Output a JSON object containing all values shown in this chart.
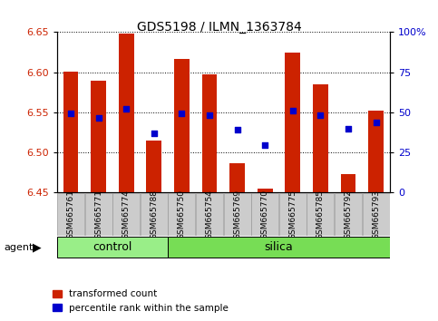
{
  "title": "GDS5198 / ILMN_1363784",
  "samples": [
    "GSM665761",
    "GSM665771",
    "GSM665774",
    "GSM665788",
    "GSM665750",
    "GSM665754",
    "GSM665769",
    "GSM665770",
    "GSM665775",
    "GSM665785",
    "GSM665792",
    "GSM665793"
  ],
  "bar_values": [
    6.601,
    6.59,
    6.648,
    6.515,
    6.617,
    6.597,
    6.487,
    6.455,
    6.625,
    6.585,
    6.473,
    6.552
  ],
  "bar_bottom": 6.45,
  "percentile_values": [
    6.549,
    6.543,
    6.554,
    6.524,
    6.549,
    6.546,
    6.528,
    6.509,
    6.552,
    6.547,
    6.53,
    6.537
  ],
  "ylim": [
    6.45,
    6.65
  ],
  "yticks_left": [
    6.45,
    6.5,
    6.55,
    6.6,
    6.65
  ],
  "yticks_right": [
    0,
    25,
    50,
    75,
    100
  ],
  "control_count": 4,
  "silica_count": 8,
  "bar_color": "#cc2200",
  "dot_color": "#0000cc",
  "control_color": "#99ee88",
  "silica_color": "#77dd55",
  "agent_label": "agent",
  "control_label": "control",
  "silica_label": "silica",
  "legend_bar": "transformed count",
  "legend_dot": "percentile rank within the sample",
  "bar_width": 0.55,
  "tick_bg_color": "#cccccc",
  "tick_edge_color": "#999999"
}
